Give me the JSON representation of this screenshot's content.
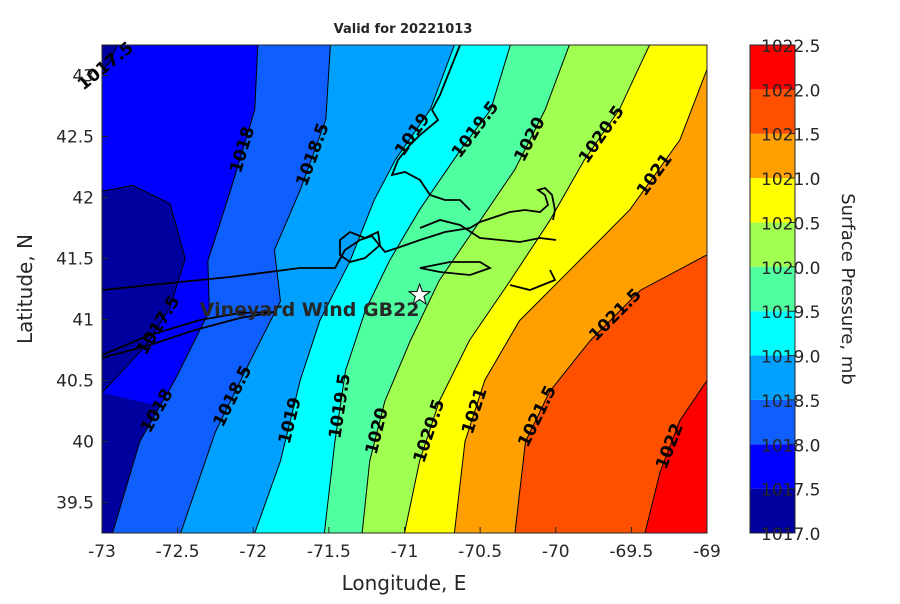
{
  "chart_data": {
    "type": "contour",
    "title": "Valid for 20221013",
    "x_label": "Longitude, E",
    "y_label": "Latitude, N",
    "xlim": [
      -73,
      -69
    ],
    "ylim": [
      39.25,
      43.25
    ],
    "xticks": [
      -73,
      -72.5,
      -72,
      -71.5,
      -71,
      -70.5,
      -70,
      -69.5,
      -69
    ],
    "yticks": [
      39.5,
      40,
      40.5,
      41,
      41.5,
      42,
      42.5,
      43
    ],
    "colorbar": {
      "label": "Surface Pressure, mb",
      "lim": [
        1017,
        1022.5
      ],
      "ticks": [
        {
          "value": 1017,
          "label": "1017.0"
        },
        1017.5,
        {
          "value": 1018,
          "label": "1018.0"
        },
        1018.5,
        {
          "value": 1019,
          "label": "1019.0"
        },
        1019.5,
        {
          "value": 1020,
          "label": "1020.0"
        },
        1020.5,
        {
          "value": 1021,
          "label": "1021.0"
        },
        1021.5,
        {
          "value": 1022,
          "label": "1022.0"
        },
        1022.5
      ],
      "colors": [
        "#00009f",
        "#0000ff",
        "#0f5fff",
        "#00a0ff",
        "#00ffff",
        "#50ffa0",
        "#a0ff50",
        "#ffff00",
        "#ffa000",
        "#ff5000",
        "#ff0000"
      ]
    },
    "contours": [
      {
        "level": 1017.5,
        "lon": [
          -72.9,
          -72.95,
          -73,
          -73,
          -72.8,
          -72.55,
          -72.45,
          -72.55,
          -72.7,
          -73
        ],
        "lat": [
          43.25,
          43.1,
          43.05,
          42.05,
          42.1,
          41.95,
          41.5,
          41.1,
          40.8,
          40.4
        ]
      },
      {
        "level": 1018,
        "lon": [
          -72.93,
          -72.75,
          -72.52,
          -72.29,
          -72.3,
          -72.15,
          -71.99,
          -71.97
        ],
        "lat": [
          39.25,
          40.0,
          40.5,
          41.07,
          41.48,
          42.06,
          42.72,
          43.25
        ]
      },
      {
        "level": 1018.5,
        "lon": [
          -72.48,
          -72.25,
          -72.02,
          -71.82,
          -71.86,
          -71.69,
          -71.52,
          -71.49
        ],
        "lat": [
          39.25,
          40.08,
          40.66,
          41.15,
          41.57,
          42.06,
          42.64,
          43.25
        ]
      },
      {
        "level": 1019,
        "lon": [
          -71.99,
          -71.82,
          -71.69,
          -71.56,
          -71.36,
          -71.2,
          -71.06,
          -70.83,
          -70.67
        ],
        "lat": [
          39.25,
          39.84,
          40.5,
          40.99,
          41.48,
          41.98,
          42.31,
          42.72,
          43.25
        ]
      },
      {
        "level": 1019.5,
        "lon": [
          -71.53,
          -71.46,
          -71.39,
          -71.26,
          -71.1,
          -70.9,
          -70.63,
          -70.43,
          -70.3
        ],
        "lat": [
          39.25,
          40.0,
          40.58,
          41.07,
          41.48,
          41.9,
          42.39,
          42.72,
          43.25
        ]
      },
      {
        "level": 1020,
        "lon": [
          -71.28,
          -71.23,
          -71.13,
          -70.96,
          -70.77,
          -70.5,
          -70.27,
          -70.07,
          -69.91
        ],
        "lat": [
          39.25,
          39.84,
          40.33,
          40.83,
          41.32,
          41.81,
          42.23,
          42.72,
          43.25
        ]
      },
      {
        "level": 1020.5,
        "lon": [
          -71.0,
          -70.9,
          -70.77,
          -70.57,
          -70.3,
          -70.04,
          -69.81,
          -69.58,
          -69.38
        ],
        "lat": [
          39.25,
          39.84,
          40.33,
          40.83,
          41.32,
          41.81,
          42.31,
          42.72,
          43.25
        ]
      },
      {
        "level": 1021,
        "lon": [
          -70.67,
          -70.6,
          -70.47,
          -70.24,
          -69.91,
          -69.51,
          -69.18,
          -69.0
        ],
        "lat": [
          39.25,
          40.0,
          40.5,
          40.99,
          41.4,
          41.9,
          42.47,
          43.05
        ]
      },
      {
        "level": 1021.5,
        "lon": [
          -70.27,
          -70.2,
          -70.04,
          -69.77,
          -69.44,
          -69.0
        ],
        "lat": [
          39.25,
          40.0,
          40.41,
          40.83,
          41.24,
          41.53
        ]
      },
      {
        "level": 1022,
        "lon": [
          -69.41,
          -69.31,
          -69.18,
          -69.0
        ],
        "lat": [
          39.25,
          39.75,
          40.17,
          40.5
        ]
      }
    ],
    "site": {
      "label": "Vineyard Wind GB22",
      "lon": -70.9,
      "lat": 41.2
    }
  }
}
